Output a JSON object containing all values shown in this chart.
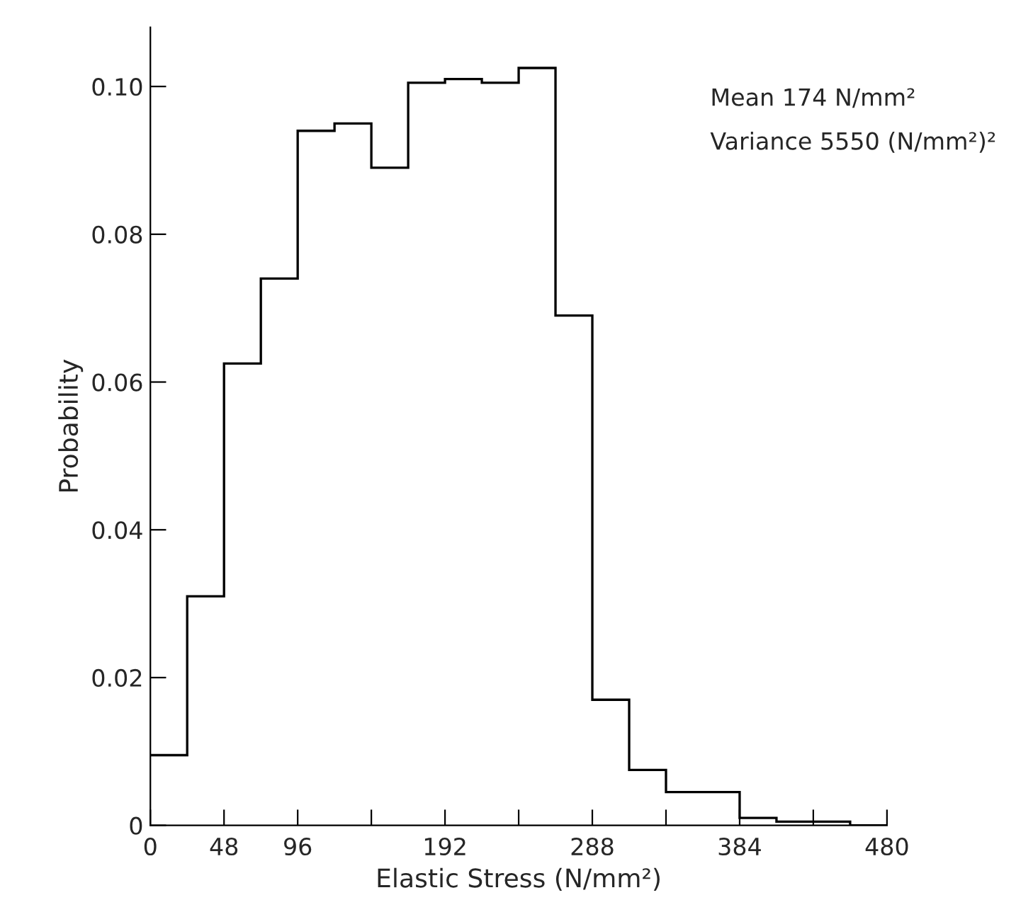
{
  "chart_data": {
    "type": "histogram",
    "xlabel": "Elastic Stress (N/mm²)",
    "ylabel": "Probability",
    "bins": [
      0,
      24,
      48,
      72,
      96,
      120,
      144,
      168,
      192,
      216,
      240,
      264,
      288,
      312,
      336,
      360,
      384,
      408,
      432,
      456,
      480
    ],
    "values": [
      0.0095,
      0.031,
      0.0625,
      0.074,
      0.094,
      0.095,
      0.089,
      0.1005,
      0.101,
      0.1005,
      0.1025,
      0.069,
      0.017,
      0.0075,
      0.0045,
      0.0045,
      0.001,
      0.0005,
      0.0005,
      0
    ],
    "color": "#000000",
    "xlim": [
      0,
      480
    ],
    "ylim": [
      0,
      0.108
    ],
    "xticks": [
      0,
      48,
      96,
      {
        "value": 144,
        "label": null
      },
      192,
      {
        "value": 240,
        "label": null
      },
      288,
      {
        "value": 336,
        "label": null
      },
      384,
      {
        "value": 432,
        "label": null
      },
      480
    ],
    "yticks": [
      0,
      0.02,
      0.04,
      0.06,
      0.08,
      {
        "value": 0.1,
        "label": "0.10"
      }
    ],
    "annotations": [
      "Mean 174 N/mm²",
      "Variance 5550 (N/mm²)²"
    ],
    "grid": false
  }
}
